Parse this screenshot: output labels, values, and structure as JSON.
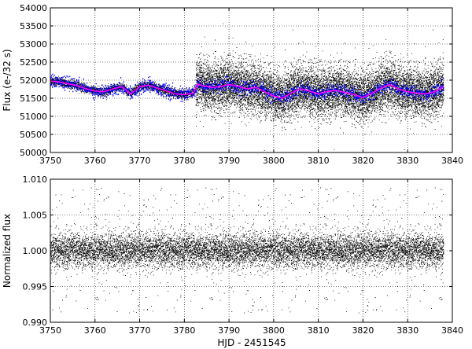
{
  "chart_data": [
    {
      "type": "scatter",
      "title": "",
      "xlabel": "",
      "ylabel": "Flux (e-/32 s)",
      "xlim": [
        3750,
        3840
      ],
      "ylim": [
        50000,
        54000
      ],
      "xticks": [
        3750,
        3760,
        3770,
        3780,
        3790,
        3800,
        3810,
        3820,
        3830,
        3840
      ],
      "yticks": [
        50000,
        50500,
        51000,
        51500,
        52000,
        52500,
        53000,
        53500,
        54000
      ],
      "grid": true,
      "colors": {
        "raw": "#000000",
        "binned": "#0000ff",
        "smooth": "#ff00ff"
      },
      "series": [
        {
          "kind": "raw",
          "description_points": "Before x≈3782.5 sparse low-scatter points around 51550-52050; after, dense scatter spanning ~50500-53200 centered on trend",
          "gap_end": 3782.5,
          "noise_before": 120,
          "noise_after": 340
        },
        {
          "kind": "trend",
          "x": [
            3750,
            3752,
            3754,
            3756,
            3758,
            3760,
            3762,
            3764,
            3766,
            3768,
            3770,
            3772,
            3774,
            3776,
            3778,
            3780,
            3782,
            3783,
            3784,
            3786,
            3788,
            3790,
            3792,
            3794,
            3796,
            3798,
            3800,
            3802,
            3804,
            3806,
            3808,
            3810,
            3812,
            3814,
            3816,
            3818,
            3820,
            3822,
            3824,
            3826,
            3828,
            3830,
            3832,
            3834,
            3836,
            3838
          ],
          "y": [
            51980,
            51950,
            51900,
            51850,
            51760,
            51700,
            51680,
            51760,
            51820,
            51620,
            51820,
            51860,
            51780,
            51700,
            51620,
            51600,
            51640,
            51900,
            51850,
            51800,
            51820,
            51880,
            51830,
            51760,
            51800,
            51680,
            51560,
            51500,
            51650,
            51760,
            51700,
            51620,
            51690,
            51720,
            51660,
            51600,
            51520,
            51640,
            51780,
            51880,
            51750,
            51680,
            51640,
            51620,
            51680,
            51820
          ]
        }
      ]
    },
    {
      "type": "scatter",
      "title": "",
      "xlabel": "HJD - 2451545",
      "ylabel": "Normalized flux",
      "xlim": [
        3750,
        3840
      ],
      "ylim": [
        0.99,
        1.01
      ],
      "xticks": [
        3750,
        3760,
        3770,
        3780,
        3790,
        3800,
        3810,
        3820,
        3830,
        3840
      ],
      "yticks": [
        "0.990",
        "0.995",
        "1.000",
        "1.005",
        "1.010"
      ],
      "grid": true,
      "colors": {
        "raw": "#000000"
      },
      "series": [
        {
          "kind": "normalized",
          "center": 1.0,
          "noise": 0.0022,
          "x_range": [
            3750,
            3838
          ]
        }
      ]
    }
  ]
}
